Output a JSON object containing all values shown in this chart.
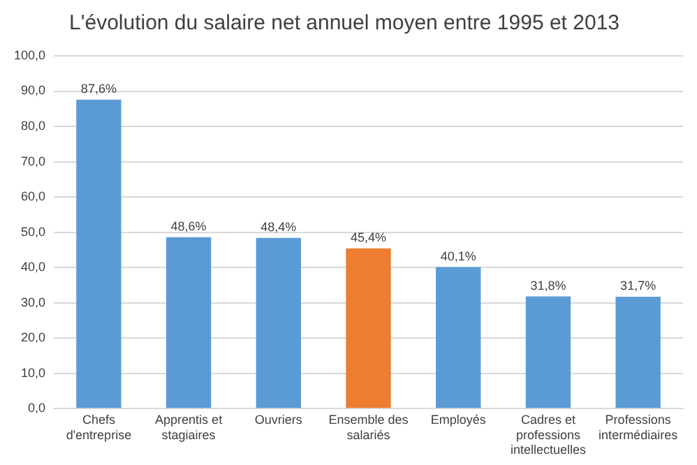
{
  "chart_data": {
    "type": "bar",
    "title": "L'évolution du salaire net annuel moyen entre 1995 et 2013",
    "categories": [
      "Chefs d'entreprise",
      "Apprentis et stagiaires",
      "Ouvriers",
      "Ensemble des salariés",
      "Employés",
      "Cadres et professions intellectuelles",
      "Professions intermédiaires"
    ],
    "values": [
      87.6,
      48.6,
      48.4,
      45.4,
      40.1,
      31.8,
      31.7
    ],
    "colors": [
      "#5b9bd5",
      "#5b9bd5",
      "#5b9bd5",
      "#ed7d31",
      "#5b9bd5",
      "#5b9bd5",
      "#5b9bd5"
    ],
    "value_labels": [
      "87,6%",
      "48,6%",
      "48,4%",
      "45,4%",
      "40,1%",
      "31,8%",
      "31,7%"
    ],
    "ylim": [
      0,
      100
    ],
    "yticks": [
      {
        "value": 0,
        "label": "0,0"
      },
      {
        "value": 10,
        "label": "10,0"
      },
      {
        "value": 20,
        "label": "20,0"
      },
      {
        "value": 30,
        "label": "30,0"
      },
      {
        "value": 40,
        "label": "40,0"
      },
      {
        "value": 50,
        "label": "50,0"
      },
      {
        "value": 60,
        "label": "60,0"
      },
      {
        "value": 70,
        "label": "70,0"
      },
      {
        "value": 80,
        "label": "80,0"
      },
      {
        "value": 90,
        "label": "90,0"
      },
      {
        "value": 100,
        "label": "100,0"
      }
    ],
    "grid": "y",
    "legend": false
  }
}
